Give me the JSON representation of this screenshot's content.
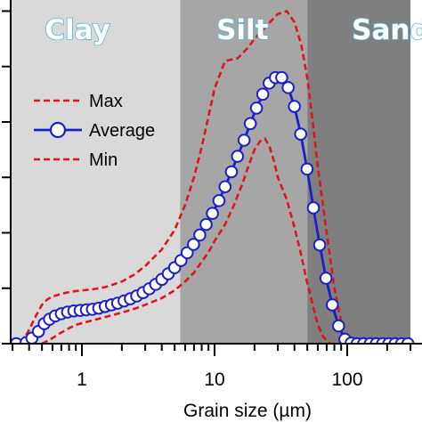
{
  "chart_data": {
    "type": "line",
    "xlabel": "Grain size (µm)",
    "ylabel": "",
    "xscale": "log",
    "xlim": [
      0.28,
      300
    ],
    "ylim": [
      0,
      6.2
    ],
    "x_ticks": [
      {
        "value": 1,
        "label": "1"
      },
      {
        "value": 10,
        "label": "10"
      },
      {
        "value": 100,
        "label": "100"
      }
    ],
    "y_ticks": [
      0,
      1,
      2,
      3,
      4,
      5,
      6
    ],
    "regions": [
      {
        "label": "Clay",
        "from": 0.28,
        "to": 5.5,
        "color": "#d9d9d9"
      },
      {
        "label": "Silt",
        "from": 5.5,
        "to": 50,
        "color": "#a6a6a6"
      },
      {
        "label": "Sand",
        "from": 50,
        "to": 300,
        "color": "#7f7f7f"
      }
    ],
    "legend": {
      "placement": "left",
      "entries": [
        {
          "series": "max",
          "label": "Max"
        },
        {
          "series": "average",
          "label": "Average"
        },
        {
          "series": "min",
          "label": "Min"
        }
      ]
    },
    "series": [
      {
        "key": "max",
        "name": "Max",
        "style": "dashed",
        "color": "#e0141e",
        "x": [
          0.35,
          0.4,
          0.45,
          0.5,
          0.55,
          0.6,
          0.7,
          0.8,
          0.9,
          1.0,
          1.2,
          1.5,
          2.0,
          2.5,
          3.0,
          4.0,
          5.0,
          6.0,
          7.0,
          8.0,
          9.0,
          10,
          12,
          15,
          18,
          20,
          25,
          30,
          35,
          40,
          45,
          50,
          55,
          60,
          70,
          80,
          90
        ],
        "y": [
          0,
          0.25,
          0.5,
          0.7,
          0.8,
          0.85,
          0.9,
          0.93,
          0.95,
          0.96,
          0.98,
          1.02,
          1.12,
          1.25,
          1.4,
          1.7,
          2.05,
          2.5,
          3.0,
          3.55,
          4.1,
          4.6,
          5.1,
          5.15,
          5.35,
          5.5,
          5.75,
          5.95,
          6.0,
          5.8,
          5.4,
          4.8,
          4.0,
          3.2,
          2.0,
          1.0,
          0.4
        ]
      },
      {
        "key": "average",
        "name": "Average",
        "style": "solid-markers",
        "color": "#1a1fc8",
        "x": [
          0.32,
          0.38,
          0.42,
          0.47,
          0.52,
          0.57,
          0.63,
          0.7,
          0.78,
          0.87,
          0.97,
          1.08,
          1.2,
          1.34,
          1.5,
          1.67,
          1.86,
          2.08,
          2.32,
          2.59,
          2.89,
          3.22,
          3.6,
          4.01,
          4.48,
          5.0,
          5.58,
          6.22,
          6.94,
          7.74,
          8.64,
          9.64,
          10.8,
          12.0,
          13.4,
          14.9,
          16.7,
          18.6,
          20.7,
          23.1,
          25.8,
          28.8,
          32.1,
          35.9,
          40.0,
          44.6,
          49.8,
          55.6,
          62.0,
          69.2,
          77.2,
          86.1,
          96.1,
          107,
          119,
          133,
          149,
          166,
          185,
          206,
          230,
          257,
          287
        ],
        "y": [
          0,
          0.02,
          0.1,
          0.22,
          0.36,
          0.44,
          0.5,
          0.54,
          0.57,
          0.59,
          0.6,
          0.61,
          0.62,
          0.64,
          0.67,
          0.7,
          0.73,
          0.77,
          0.81,
          0.86,
          0.92,
          0.99,
          1.07,
          1.16,
          1.26,
          1.37,
          1.5,
          1.64,
          1.79,
          1.96,
          2.15,
          2.35,
          2.58,
          2.83,
          3.1,
          3.38,
          3.67,
          3.97,
          4.25,
          4.5,
          4.7,
          4.8,
          4.8,
          4.62,
          4.28,
          3.78,
          3.15,
          2.45,
          1.78,
          1.18,
          0.7,
          0.32,
          0.08,
          0.01,
          0,
          0,
          0,
          0,
          0,
          0,
          0,
          0,
          0
        ]
      },
      {
        "key": "min",
        "name": "Min",
        "style": "dashed",
        "color": "#e0141e",
        "x": [
          0.5,
          0.55,
          0.6,
          0.7,
          0.8,
          0.9,
          1.0,
          1.2,
          1.5,
          2.0,
          2.5,
          3.0,
          4.0,
          5.0,
          6.0,
          7.0,
          8.0,
          9.0,
          10,
          12,
          14,
          16,
          18,
          20,
          22,
          24,
          26,
          28,
          30,
          35,
          40,
          45,
          50,
          55,
          60,
          65,
          70,
          75,
          80,
          85
        ],
        "y": [
          0,
          0.05,
          0.1,
          0.2,
          0.28,
          0.34,
          0.37,
          0.42,
          0.48,
          0.56,
          0.63,
          0.7,
          0.82,
          0.96,
          1.12,
          1.28,
          1.48,
          1.65,
          1.85,
          2.15,
          2.5,
          2.85,
          3.2,
          3.5,
          3.65,
          3.7,
          3.55,
          3.3,
          3.0,
          2.6,
          2.1,
          1.6,
          1.1,
          0.7,
          0.35,
          0.15,
          0.05,
          0,
          0,
          0
        ]
      }
    ]
  }
}
